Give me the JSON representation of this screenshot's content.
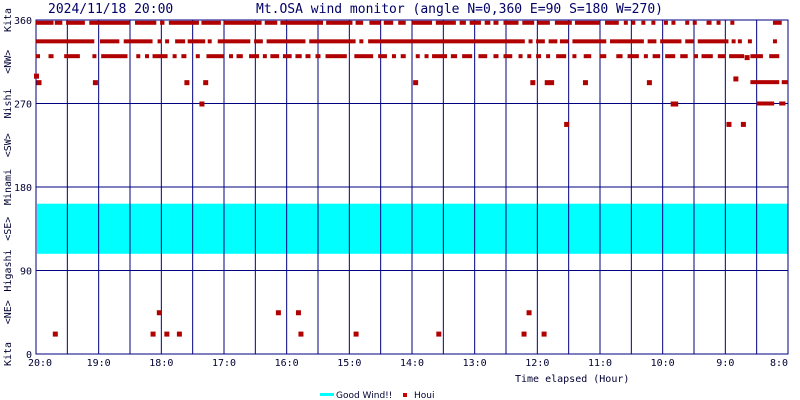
{
  "header": {
    "datetime": "2024/11/18 20:00",
    "title": "Mt.OSA wind monitor (angle N=0,360 E=90 S=180 W=270)"
  },
  "chart_data": {
    "type": "scatter",
    "xlabel": "Time elapsed (Hour)",
    "x_range_hours_ago": [
      0,
      12
    ],
    "x_reversed": true,
    "ylim": [
      0,
      360
    ],
    "x_ticks": [
      {
        "h": 0,
        "label": "20:0"
      },
      {
        "h": 1,
        "label": "19:0"
      },
      {
        "h": 2,
        "label": "18:0"
      },
      {
        "h": 3,
        "label": "17:0"
      },
      {
        "h": 4,
        "label": "16:0"
      },
      {
        "h": 5,
        "label": "15:0"
      },
      {
        "h": 6,
        "label": "14:0"
      },
      {
        "h": 7,
        "label": "13:0"
      },
      {
        "h": 8,
        "label": "12:0"
      },
      {
        "h": 9,
        "label": "11:0"
      },
      {
        "h": 10,
        "label": "10:0"
      },
      {
        "h": 11,
        "label": "9:0"
      },
      {
        "h": 12,
        "label": "8:0"
      }
    ],
    "y_ticks": [
      {
        "v": 0,
        "label": "0"
      },
      {
        "v": 90,
        "label": "90"
      },
      {
        "v": 180,
        "label": "180"
      },
      {
        "v": 270,
        "label": "270"
      },
      {
        "v": 360,
        "label": "360"
      }
    ],
    "y_axis_labels": [
      {
        "v": 0,
        "label": "Kita"
      },
      {
        "v": 45,
        "label": "<NE>"
      },
      {
        "v": 90,
        "label": "Higashi"
      },
      {
        "v": 135,
        "label": "<SE>"
      },
      {
        "v": 180,
        "label": "Minami"
      },
      {
        "v": 225,
        "label": "<SW>"
      },
      {
        "v": 270,
        "label": "Nishi"
      },
      {
        "v": 315,
        "label": "<NW>"
      },
      {
        "v": 360,
        "label": "Kita"
      }
    ],
    "good_wind_band": {
      "from": 108,
      "to": 162,
      "color": "#00ffff"
    },
    "grid": true,
    "legend": [
      {
        "label": "Good Wind!!",
        "color": "#00ffff",
        "kind": "line"
      },
      {
        "label": "Houi",
        "color": "#cc0000",
        "kind": "point"
      }
    ],
    "series": [
      {
        "name": "Houi",
        "color": "#b00000",
        "rows": [
          {
            "y": 357,
            "segments": [
              [
                0.0,
                0.28
              ],
              [
                0.3,
                0.42
              ],
              [
                0.48,
                0.78
              ],
              [
                0.85,
                1.5
              ],
              [
                1.58,
                1.92
              ],
              [
                1.98,
                2.05
              ],
              [
                2.12,
                2.6
              ],
              [
                2.64,
                2.95
              ],
              [
                3.0,
                3.6
              ],
              [
                3.65,
                3.85
              ],
              [
                3.9,
                4.58
              ],
              [
                4.63,
                5.05
              ],
              [
                5.1,
                5.22
              ],
              [
                5.32,
                5.5
              ],
              [
                5.55,
                5.7
              ],
              [
                5.78,
                5.9
              ],
              [
                6.0,
                6.32
              ],
              [
                6.38,
                6.7
              ],
              [
                6.76,
                6.86
              ],
              [
                6.92,
                7.1
              ],
              [
                7.16,
                7.25
              ],
              [
                7.3,
                7.38
              ],
              [
                7.46,
                7.7
              ],
              [
                7.76,
                7.95
              ],
              [
                8.0,
                8.2
              ],
              [
                8.28,
                8.55
              ],
              [
                8.6,
                9.0
              ],
              [
                9.08,
                9.3
              ],
              [
                9.38,
                9.42
              ],
              [
                9.5,
                9.56
              ],
              [
                9.66,
                9.72
              ],
              [
                9.82,
                9.88
              ],
              [
                10.02,
                10.08
              ],
              [
                10.14,
                10.2
              ],
              [
                10.36,
                10.42
              ],
              [
                10.48,
                10.54
              ],
              [
                10.7,
                10.78
              ],
              [
                10.86,
                10.92
              ],
              [
                11.08,
                11.14
              ],
              [
                11.76,
                11.9
              ]
            ]
          },
          {
            "y": 337,
            "segments": [
              [
                0.0,
                0.93
              ],
              [
                1.02,
                1.33
              ],
              [
                1.4,
                1.86
              ],
              [
                1.94,
                2.0
              ],
              [
                2.06,
                2.1
              ],
              [
                2.22,
                2.38
              ],
              [
                2.42,
                2.7
              ],
              [
                2.74,
                2.8
              ],
              [
                2.9,
                3.42
              ],
              [
                3.48,
                3.62
              ],
              [
                3.68,
                4.3
              ],
              [
                4.36,
                5.1
              ],
              [
                5.16,
                5.22
              ],
              [
                5.3,
                7.8
              ],
              [
                7.86,
                7.92
              ],
              [
                7.98,
                8.12
              ],
              [
                8.18,
                8.32
              ],
              [
                8.36,
                8.5
              ],
              [
                8.56,
                9.1
              ],
              [
                9.16,
                9.7
              ],
              [
                9.76,
                9.9
              ],
              [
                9.96,
                10.3
              ],
              [
                10.36,
                10.5
              ],
              [
                10.56,
                11.05
              ],
              [
                11.1,
                11.16
              ],
              [
                11.2,
                11.26
              ],
              [
                11.36,
                11.42
              ],
              [
                11.76,
                11.82
              ]
            ]
          },
          {
            "y": 321,
            "segments": [
              [
                0.0,
                0.04
              ],
              [
                0.2,
                0.28
              ],
              [
                0.45,
                0.7
              ],
              [
                0.9,
                0.96
              ],
              [
                1.04,
                1.46
              ],
              [
                1.6,
                1.66
              ],
              [
                1.74,
                1.8
              ],
              [
                1.86,
                2.1
              ],
              [
                2.18,
                2.24
              ],
              [
                2.32,
                2.4
              ],
              [
                2.55,
                2.6
              ],
              [
                2.72,
                3.0
              ],
              [
                3.08,
                3.14
              ],
              [
                3.2,
                3.3
              ],
              [
                3.4,
                3.56
              ],
              [
                3.62,
                3.68
              ],
              [
                3.74,
                3.88
              ],
              [
                3.94,
                4.08
              ],
              [
                4.14,
                4.24
              ],
              [
                4.3,
                4.38
              ],
              [
                4.46,
                4.54
              ],
              [
                4.62,
                4.96
              ],
              [
                5.08,
                5.38
              ],
              [
                5.46,
                5.6
              ],
              [
                5.68,
                5.74
              ],
              [
                5.82,
                5.9
              ],
              [
                6.06,
                6.12
              ],
              [
                6.2,
                6.26
              ],
              [
                6.32,
                6.56
              ],
              [
                6.62,
                6.72
              ],
              [
                6.8,
                6.96
              ],
              [
                7.06,
                7.2
              ],
              [
                7.3,
                7.38
              ],
              [
                7.46,
                7.6
              ],
              [
                7.7,
                7.76
              ],
              [
                7.84,
                7.9
              ],
              [
                7.98,
                8.06
              ],
              [
                8.14,
                8.2
              ],
              [
                8.3,
                8.46
              ],
              [
                8.56,
                8.62
              ],
              [
                8.74,
                8.86
              ],
              [
                9.0,
                9.1
              ],
              [
                9.26,
                9.36
              ],
              [
                9.44,
                9.62
              ],
              [
                9.7,
                9.76
              ],
              [
                9.84,
                9.96
              ],
              [
                10.04,
                10.2
              ],
              [
                10.28,
                10.4
              ],
              [
                10.5,
                10.56
              ],
              [
                10.62,
                10.8
              ],
              [
                10.88,
                11.0
              ],
              [
                11.06,
                11.3
              ],
              [
                11.4,
                11.6
              ],
              [
                11.7,
                11.86
              ]
            ]
          },
          {
            "y": 293,
            "segments": [
              [
                11.4,
                11.86
              ],
              [
                11.9,
                12.0
              ]
            ]
          },
          {
            "y": 270,
            "segments": [
              [
                11.5,
                11.78
              ],
              [
                11.86,
                11.96
              ]
            ]
          }
        ],
        "points": [
          [
            0.0,
            300
          ],
          [
            0.04,
            293
          ],
          [
            0.94,
            293
          ],
          [
            2.4,
            293
          ],
          [
            2.7,
            293
          ],
          [
            2.64,
            270
          ],
          [
            6.05,
            293
          ],
          [
            7.92,
            293
          ],
          [
            8.15,
            293
          ],
          [
            8.22,
            293
          ],
          [
            8.46,
            248
          ],
          [
            8.76,
            293
          ],
          [
            9.78,
            293
          ],
          [
            10.16,
            270
          ],
          [
            10.2,
            270
          ],
          [
            11.05,
            248
          ],
          [
            11.28,
            248
          ],
          [
            11.16,
            297
          ],
          [
            11.34,
            320
          ],
          [
            0.3,
            22
          ],
          [
            1.86,
            22
          ],
          [
            1.96,
            45
          ],
          [
            2.08,
            22
          ],
          [
            2.28,
            22
          ],
          [
            3.86,
            45
          ],
          [
            4.18,
            45
          ],
          [
            4.22,
            22
          ],
          [
            5.1,
            22
          ],
          [
            6.42,
            22
          ],
          [
            7.78,
            22
          ],
          [
            7.86,
            45
          ],
          [
            8.1,
            22
          ]
        ]
      }
    ]
  }
}
